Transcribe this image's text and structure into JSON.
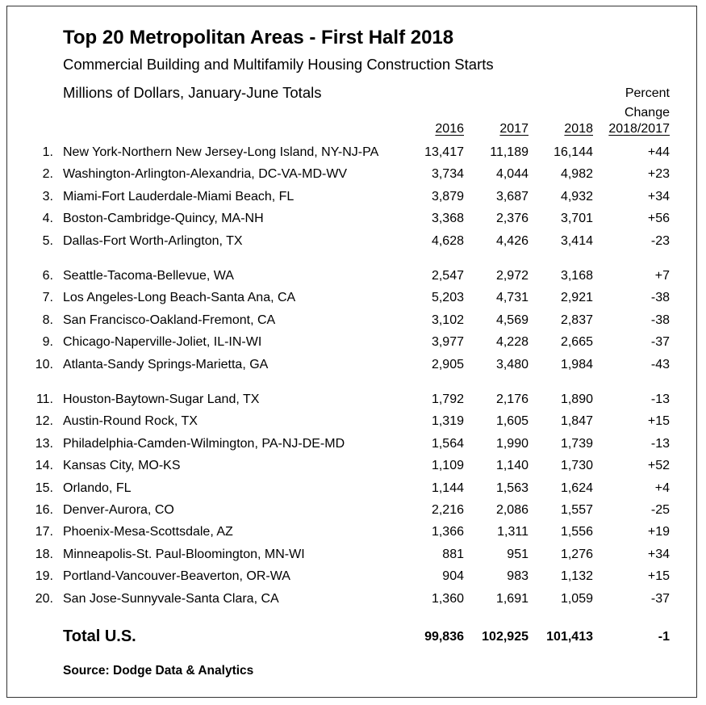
{
  "title": "Top 20 Metropolitan Areas - First Half 2018",
  "subtitle": "Commercial Building and Multifamily Housing Construction Starts",
  "units": "Millions of Dollars, January-June Totals",
  "columns": {
    "y2016": "2016",
    "y2017": "2017",
    "y2018": "2018",
    "pct_line1": "Percent",
    "pct_line2": "Change",
    "pct_line3": "2018/2017"
  },
  "rows": [
    {
      "rank": "1.",
      "name": "New York-Northern New Jersey-Long Island, NY-NJ-PA",
      "v2016": "13,417",
      "v2017": "11,189",
      "v2018": "16,144",
      "pct": "+44"
    },
    {
      "rank": "2.",
      "name": "Washington-Arlington-Alexandria, DC-VA-MD-WV",
      "v2016": "3,734",
      "v2017": "4,044",
      "v2018": "4,982",
      "pct": "+23"
    },
    {
      "rank": "3.",
      "name": "Miami-Fort Lauderdale-Miami Beach, FL",
      "v2016": "3,879",
      "v2017": "3,687",
      "v2018": "4,932",
      "pct": "+34"
    },
    {
      "rank": "4.",
      "name": "Boston-Cambridge-Quincy, MA-NH",
      "v2016": "3,368",
      "v2017": "2,376",
      "v2018": "3,701",
      "pct": "+56"
    },
    {
      "rank": "5.",
      "name": "Dallas-Fort Worth-Arlington, TX",
      "v2016": "4,628",
      "v2017": "4,426",
      "v2018": "3,414",
      "pct": "-23"
    },
    {
      "rank": "6.",
      "name": "Seattle-Tacoma-Bellevue, WA",
      "v2016": "2,547",
      "v2017": "2,972",
      "v2018": "3,168",
      "pct": "+7"
    },
    {
      "rank": "7.",
      "name": "Los Angeles-Long Beach-Santa Ana, CA",
      "v2016": "5,203",
      "v2017": "4,731",
      "v2018": "2,921",
      "pct": "-38"
    },
    {
      "rank": "8.",
      "name": "San Francisco-Oakland-Fremont, CA",
      "v2016": "3,102",
      "v2017": "4,569",
      "v2018": "2,837",
      "pct": "-38"
    },
    {
      "rank": "9.",
      "name": "Chicago-Naperville-Joliet, IL-IN-WI",
      "v2016": "3,977",
      "v2017": "4,228",
      "v2018": "2,665",
      "pct": "-37"
    },
    {
      "rank": "10.",
      "name": "Atlanta-Sandy Springs-Marietta, GA",
      "v2016": "2,905",
      "v2017": "3,480",
      "v2018": "1,984",
      "pct": "-43"
    },
    {
      "rank": "11.",
      "name": "Houston-Baytown-Sugar Land, TX",
      "v2016": "1,792",
      "v2017": "2,176",
      "v2018": "1,890",
      "pct": "-13"
    },
    {
      "rank": "12.",
      "name": "Austin-Round Rock, TX",
      "v2016": "1,319",
      "v2017": "1,605",
      "v2018": "1,847",
      "pct": "+15"
    },
    {
      "rank": "13.",
      "name": "Philadelphia-Camden-Wilmington, PA-NJ-DE-MD",
      "v2016": "1,564",
      "v2017": "1,990",
      "v2018": "1,739",
      "pct": "-13"
    },
    {
      "rank": "14.",
      "name": "Kansas City, MO-KS",
      "v2016": "1,109",
      "v2017": "1,140",
      "v2018": "1,730",
      "pct": "+52"
    },
    {
      "rank": "15.",
      "name": "Orlando, FL",
      "v2016": "1,144",
      "v2017": "1,563",
      "v2018": "1,624",
      "pct": "+4"
    },
    {
      "rank": "16.",
      "name": "Denver-Aurora, CO",
      "v2016": "2,216",
      "v2017": "2,086",
      "v2018": "1,557",
      "pct": "-25"
    },
    {
      "rank": "17.",
      "name": "Phoenix-Mesa-Scottsdale, AZ",
      "v2016": "1,366",
      "v2017": "1,311",
      "v2018": "1,556",
      "pct": "+19"
    },
    {
      "rank": "18.",
      "name": "Minneapolis-St. Paul-Bloomington, MN-WI",
      "v2016": "881",
      "v2017": "951",
      "v2018": "1,276",
      "pct": "+34"
    },
    {
      "rank": "19.",
      "name": "Portland-Vancouver-Beaverton, OR-WA",
      "v2016": "904",
      "v2017": "983",
      "v2018": "1,132",
      "pct": "+15"
    },
    {
      "rank": "20.",
      "name": "San Jose-Sunnyvale-Santa Clara, CA",
      "v2016": "1,360",
      "v2017": "1,691",
      "v2018": "1,059",
      "pct": "-37"
    }
  ],
  "total": {
    "name": "Total U.S.",
    "v2016": "99,836",
    "v2017": "102,925",
    "v2018": "101,413",
    "pct": "-1"
  },
  "source": "Source:  Dodge Data & Analytics"
}
